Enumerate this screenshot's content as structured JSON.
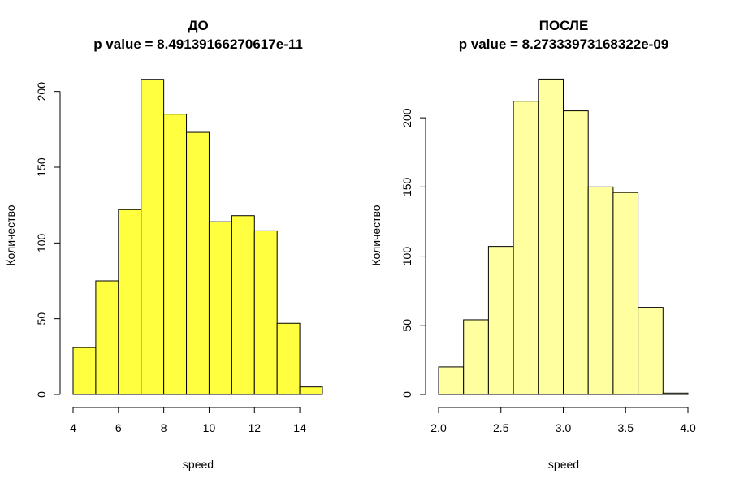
{
  "chart_data": [
    {
      "type": "bar",
      "subtype": "histogram",
      "title": "ДО",
      "subtitle": "p value = 8.49139166270617e-11",
      "xlabel": "speed",
      "ylabel": "Количество",
      "bin_edges": [
        4,
        5,
        6,
        7,
        8,
        9,
        10,
        11,
        12,
        13,
        14,
        15
      ],
      "values": [
        31,
        75,
        122,
        208,
        185,
        173,
        114,
        118,
        108,
        47,
        5
      ],
      "xlim": [
        4,
        15
      ],
      "ylim": [
        0,
        210
      ],
      "x_ticks": [
        4,
        6,
        8,
        10,
        12,
        14
      ],
      "y_ticks": [
        0,
        50,
        100,
        150,
        200
      ],
      "color": "#FFFF40",
      "grid": false
    },
    {
      "type": "bar",
      "subtype": "histogram",
      "title": "ПОСЛЕ",
      "subtitle": "p value = 8.27333973168322e-09",
      "xlabel": "speed",
      "ylabel": "Количество",
      "bin_edges": [
        2.0,
        2.2,
        2.4,
        2.6,
        2.8,
        3.0,
        3.2,
        3.4,
        3.6,
        3.8,
        4.0
      ],
      "values": [
        20,
        54,
        107,
        212,
        228,
        205,
        150,
        146,
        63,
        1
      ],
      "xlim": [
        2.0,
        4.0
      ],
      "ylim": [
        0,
        230
      ],
      "x_ticks": [
        "2.0",
        "2.5",
        "3.0",
        "3.5",
        "4.0"
      ],
      "y_ticks": [
        0,
        50,
        100,
        150,
        200
      ],
      "color": "#FFFFA0",
      "grid": false
    }
  ]
}
